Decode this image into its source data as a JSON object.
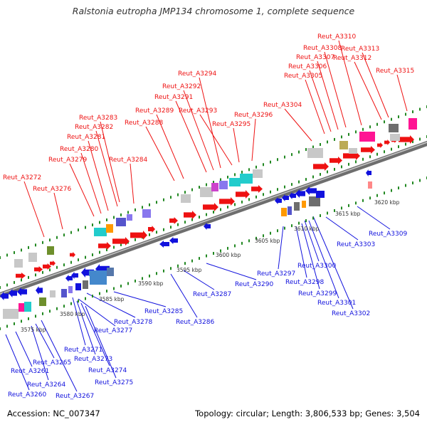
{
  "title": "Ralstonia eutropha JMP134 chromosome 1, complete sequence",
  "footer": {
    "accession": "Accession: NC_007347",
    "topology": "Topology: circular; Length: 3,806,533 bp; Genes: 3,504"
  },
  "colors": {
    "forward_label": "#ee1111",
    "reverse_label": "#1111dd",
    "axis": "#8a8a8a",
    "tick": "#228822"
  },
  "scale_labels": [
    "3575 kbp",
    "3580 kbp",
    "3585 kbp",
    "3590 kbp",
    "3595 kbp",
    "3600 kbp",
    "3605 kbp",
    "3610 kbp",
    "3615 kbp",
    "3620 kbp"
  ],
  "forward_genes": [
    "Reut_A3272",
    "Reut_A3276",
    "Reut_A3279",
    "Reut_A3280",
    "Reut_A3281",
    "Reut_A3282",
    "Reut_A3283",
    "Reut_A3284",
    "Reut_A3288",
    "Reut_A3289",
    "Reut_A3291",
    "Reut_A3292",
    "Reut_A3294",
    "Reut_A3293",
    "Reut_A3295",
    "Reut_A3296",
    "Reut_A3304",
    "Reut_A3305",
    "Reut_A3306",
    "Reut_A3307",
    "Reut_A3308",
    "Reut_A3310",
    "Reut_A3312",
    "Reut_A3313",
    "Reut_A3315"
  ],
  "reverse_genes": [
    "Reut_A3260",
    "Reut_A3261",
    "Reut_A3264",
    "Reut_A3265",
    "Reut_A3267",
    "Reut_A3271",
    "Reut_A3273",
    "Reut_A3274",
    "Reut_A3275",
    "Reut_A3277",
    "Reut_A3278",
    "Reut_A3285",
    "Reut_A3286",
    "Reut_A3287",
    "Reut_A3290",
    "Reut_A3297",
    "Reut_A3298",
    "Reut_A3299",
    "Reut_A3300",
    "Reut_A3301",
    "Reut_A3302",
    "Reut_A3303",
    "Reut_A3309"
  ]
}
